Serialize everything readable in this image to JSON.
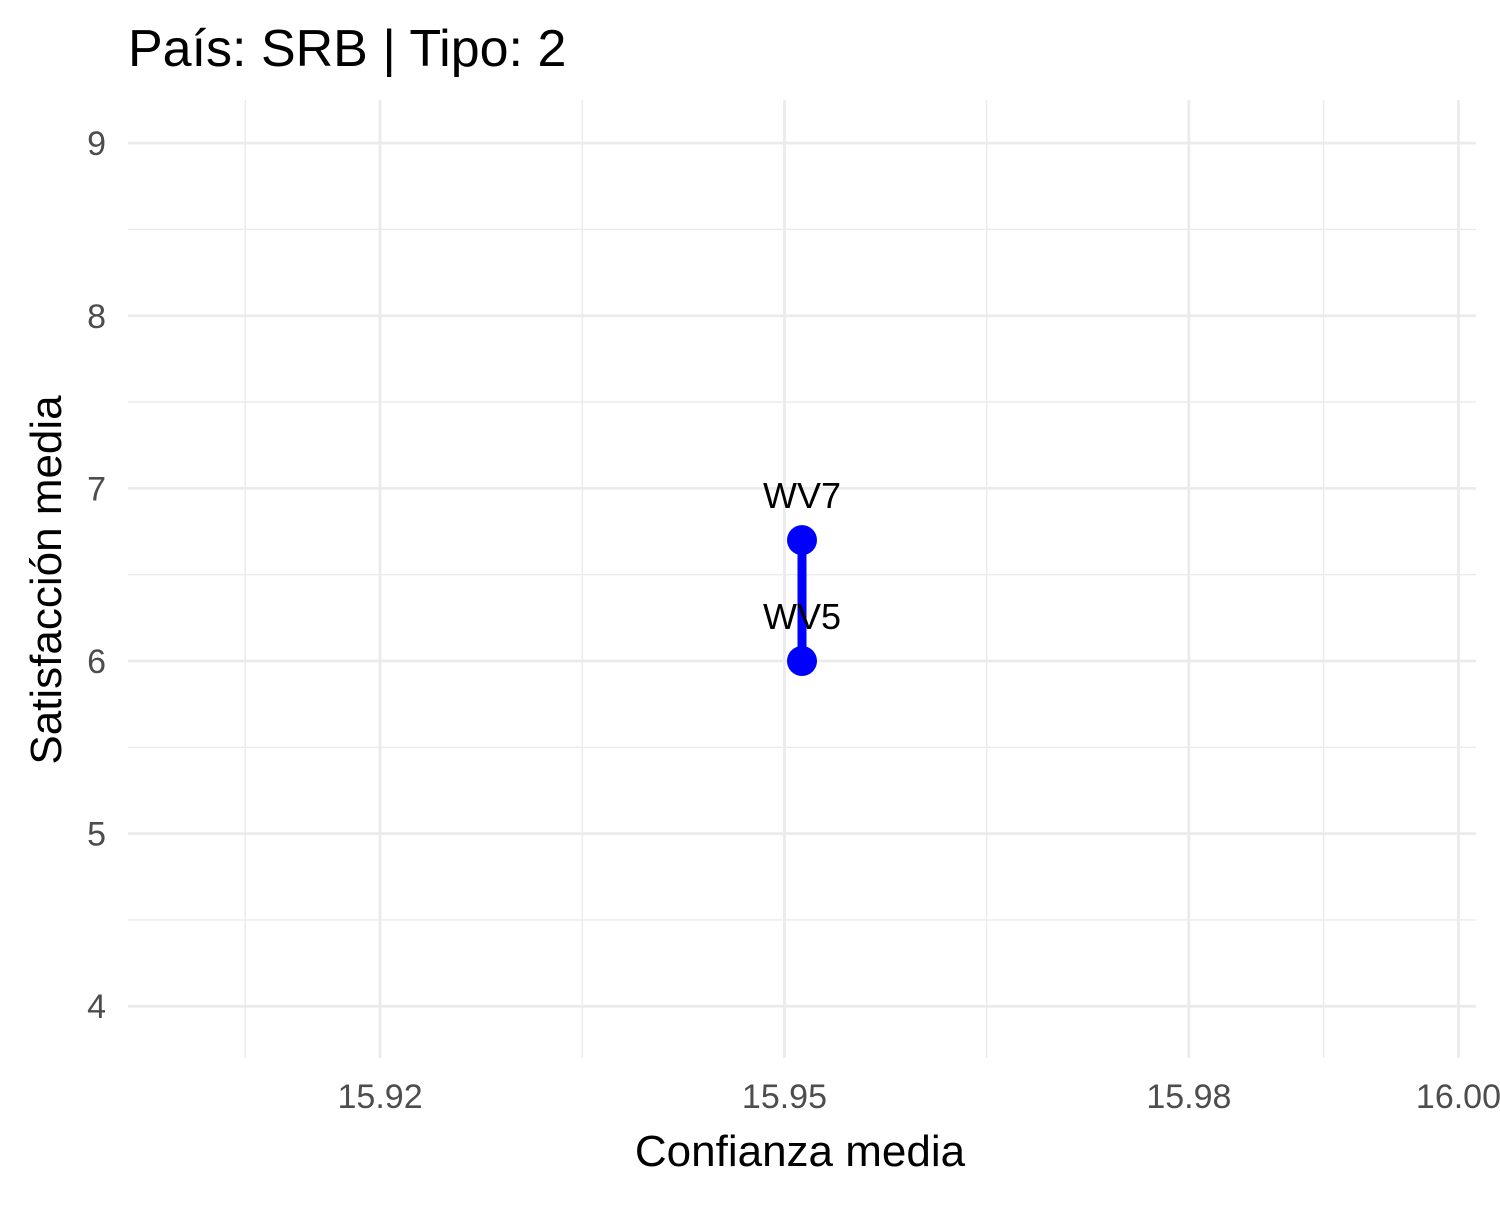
{
  "chart_data": {
    "type": "line",
    "title": "País: SRB | Tipo: 2",
    "xlabel": "Confianza media",
    "ylabel": "Satisfacción media",
    "xlim": [
      15.9013,
      16.0013
    ],
    "ylim": [
      3.7,
      9.25
    ],
    "x_ticks": [
      15.92,
      15.95,
      15.98,
      16.0
    ],
    "x_tick_labels": [
      "15.92",
      "15.95",
      "15.98",
      "16.00"
    ],
    "x_minor_ticks": [
      15.91,
      15.935,
      15.965,
      15.99
    ],
    "y_ticks": [
      4,
      5,
      6,
      7,
      8,
      9
    ],
    "y_tick_labels": [
      "4",
      "5",
      "6",
      "7",
      "8",
      "9"
    ],
    "y_minor_ticks": [
      4.5,
      5.5,
      6.5,
      7.5,
      8.5
    ],
    "grid": true,
    "series": [
      {
        "color": "#0000ff",
        "points": [
          {
            "x": 15.9513,
            "y": 6.0,
            "label": "WV5"
          },
          {
            "x": 15.9513,
            "y": 6.7,
            "label": "WV7"
          }
        ]
      }
    ]
  }
}
